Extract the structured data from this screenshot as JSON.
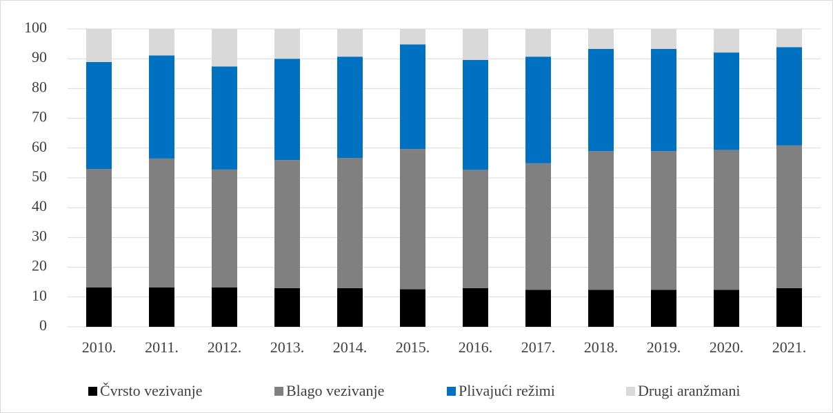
{
  "chart_data": {
    "type": "stacked_bar",
    "categories": [
      "2010.",
      "2011.",
      "2012.",
      "2013.",
      "2014.",
      "2015.",
      "2016.",
      "2017.",
      "2018.",
      "2019.",
      "2020.",
      "2021."
    ],
    "series": [
      {
        "name": "Čvrsto vezivanje",
        "color": "#000000",
        "values": [
          13.2,
          13.2,
          13.2,
          13.0,
          13.0,
          12.6,
          13.0,
          12.4,
          12.4,
          12.4,
          12.4,
          13.0
        ]
      },
      {
        "name": "Blago vezivanje",
        "color": "#808080",
        "values": [
          39.8,
          43.3,
          39.6,
          43.0,
          43.7,
          47.1,
          39.7,
          42.5,
          46.6,
          46.6,
          47.0,
          47.9
        ]
      },
      {
        "name": "Plivajući režimi",
        "color": "#0070c0",
        "values": [
          35.9,
          34.6,
          34.6,
          34.0,
          34.0,
          35.1,
          36.9,
          35.8,
          34.3,
          34.3,
          32.7,
          33.0
        ]
      },
      {
        "name": "Drugi aranžmani",
        "color": "#d9d9d9",
        "values": [
          11.1,
          8.9,
          12.6,
          10.0,
          9.3,
          5.2,
          10.4,
          9.3,
          6.7,
          6.7,
          7.9,
          6.1
        ]
      }
    ],
    "ylim": [
      0,
      100
    ],
    "yticks": [
      0,
      10,
      20,
      30,
      40,
      50,
      60,
      70,
      80,
      90,
      100
    ],
    "grid": true,
    "legend": "bottom"
  }
}
